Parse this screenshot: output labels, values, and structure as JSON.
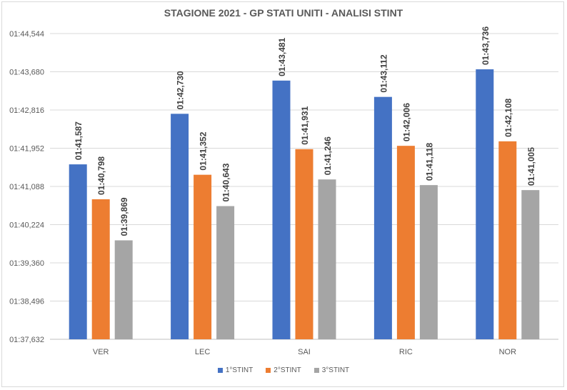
{
  "chart_data": {
    "type": "bar",
    "title": "STAGIONE 2021 - GP STATI UNITI -  ANALISI STINT",
    "xlabel": "",
    "ylabel": "",
    "categories": [
      "VER",
      "LEC",
      "SAI",
      "RIC",
      "NOR"
    ],
    "y_ticks": [
      "01:37,632",
      "01:38,496",
      "01:39,360",
      "01:40,224",
      "01:41,088",
      "01:41,952",
      "01:42,816",
      "01:43,680",
      "01:44,544"
    ],
    "ylim": [
      97.632,
      104.544
    ],
    "grid": true,
    "legend_position": "bottom",
    "series": [
      {
        "name": "1°STINT",
        "color": "#4472c4",
        "values": [
          101.587,
          102.73,
          103.481,
          103.112,
          103.736
        ],
        "labels": [
          "01:41,587",
          "01:42,730",
          "01:43,481",
          "01:43,112",
          "01:43,736"
        ]
      },
      {
        "name": "2°STINT",
        "color": "#ed7d31",
        "values": [
          100.798,
          101.352,
          101.931,
          102.006,
          102.108
        ],
        "labels": [
          "01:40,798",
          "01:41,352",
          "01:41,931",
          "01:42,006",
          "01:42,108"
        ]
      },
      {
        "name": "3°STINT",
        "color": "#a5a5a5",
        "values": [
          99.869,
          100.643,
          101.246,
          101.118,
          101.005
        ],
        "labels": [
          "01:39,869",
          "01:40,643",
          "01:41,246",
          "01:41,118",
          "01:41,005"
        ]
      }
    ]
  }
}
